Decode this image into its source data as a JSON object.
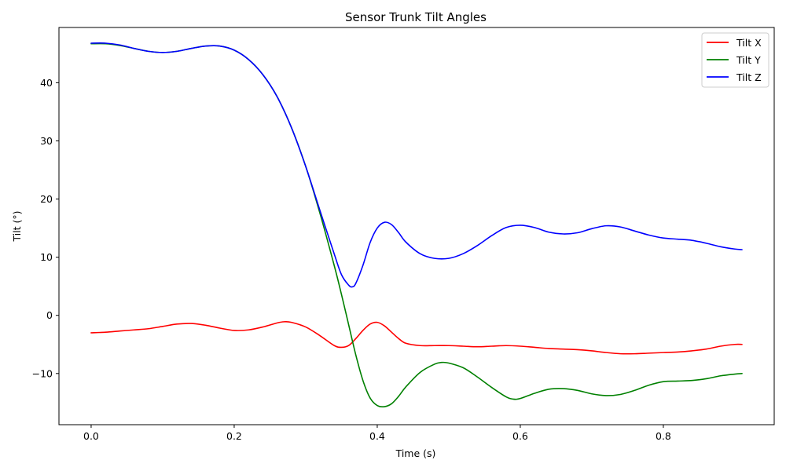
{
  "chart_data": {
    "type": "line",
    "title": "Sensor Trunk Tilt Angles",
    "xlabel": "Time (s)",
    "ylabel": "Tilt (°)",
    "xlim": [
      -0.045,
      0.955
    ],
    "ylim": [
      -18.8,
      49.5
    ],
    "xticks": [
      0.0,
      0.2,
      0.4,
      0.6,
      0.8
    ],
    "xtick_labels": [
      "0.0",
      "0.2",
      "0.4",
      "0.6",
      "0.8"
    ],
    "yticks": [
      -10,
      0,
      10,
      20,
      30,
      40
    ],
    "ytick_labels": [
      "−10",
      "0",
      "10",
      "20",
      "30",
      "40"
    ],
    "grid": false,
    "legend_position": "top-right",
    "series": [
      {
        "name": "Tilt X",
        "color": "#ff0000",
        "x": [
          0.0,
          0.02,
          0.04,
          0.06,
          0.08,
          0.1,
          0.12,
          0.14,
          0.16,
          0.18,
          0.2,
          0.22,
          0.24,
          0.26,
          0.27,
          0.28,
          0.3,
          0.32,
          0.34,
          0.35,
          0.36,
          0.37,
          0.38,
          0.39,
          0.4,
          0.41,
          0.42,
          0.43,
          0.44,
          0.46,
          0.48,
          0.5,
          0.52,
          0.54,
          0.56,
          0.58,
          0.6,
          0.62,
          0.64,
          0.66,
          0.68,
          0.7,
          0.72,
          0.74,
          0.76,
          0.78,
          0.8,
          0.82,
          0.84,
          0.86,
          0.88,
          0.9,
          0.91
        ],
        "y": [
          -3.0,
          -2.9,
          -2.7,
          -2.5,
          -2.3,
          -1.9,
          -1.5,
          -1.4,
          -1.7,
          -2.2,
          -2.6,
          -2.5,
          -2.0,
          -1.3,
          -1.1,
          -1.2,
          -2.0,
          -3.5,
          -5.2,
          -5.5,
          -5.2,
          -4.0,
          -2.6,
          -1.5,
          -1.2,
          -1.8,
          -2.9,
          -4.0,
          -4.8,
          -5.2,
          -5.2,
          -5.2,
          -5.3,
          -5.4,
          -5.3,
          -5.2,
          -5.3,
          -5.5,
          -5.7,
          -5.8,
          -5.9,
          -6.1,
          -6.4,
          -6.6,
          -6.6,
          -6.5,
          -6.4,
          -6.3,
          -6.1,
          -5.8,
          -5.3,
          -5.0,
          -5.0
        ]
      },
      {
        "name": "Tilt Y",
        "color": "#008000",
        "x": [
          0.0,
          0.02,
          0.04,
          0.06,
          0.08,
          0.1,
          0.12,
          0.14,
          0.16,
          0.18,
          0.2,
          0.22,
          0.24,
          0.26,
          0.28,
          0.3,
          0.32,
          0.34,
          0.35,
          0.36,
          0.37,
          0.38,
          0.39,
          0.4,
          0.41,
          0.42,
          0.43,
          0.44,
          0.46,
          0.48,
          0.49,
          0.5,
          0.52,
          0.54,
          0.56,
          0.58,
          0.59,
          0.6,
          0.62,
          0.64,
          0.66,
          0.68,
          0.7,
          0.72,
          0.74,
          0.76,
          0.78,
          0.8,
          0.82,
          0.84,
          0.86,
          0.88,
          0.9,
          0.91
        ],
        "y": [
          46.7,
          46.7,
          46.4,
          45.9,
          45.4,
          45.2,
          45.4,
          45.9,
          46.3,
          46.3,
          45.6,
          44.0,
          41.4,
          37.6,
          32.3,
          25.6,
          17.5,
          8.5,
          3.6,
          -1.6,
          -6.8,
          -11.2,
          -14.2,
          -15.5,
          -15.7,
          -15.2,
          -13.9,
          -12.3,
          -9.8,
          -8.4,
          -8.1,
          -8.2,
          -9.0,
          -10.6,
          -12.4,
          -14.0,
          -14.4,
          -14.3,
          -13.4,
          -12.7,
          -12.6,
          -12.9,
          -13.5,
          -13.8,
          -13.6,
          -12.9,
          -12.0,
          -11.4,
          -11.3,
          -11.2,
          -10.9,
          -10.4,
          -10.1,
          -10.0
        ]
      },
      {
        "name": "Tilt Z",
        "color": "#0000ff",
        "x": [
          0.0,
          0.02,
          0.04,
          0.06,
          0.08,
          0.1,
          0.12,
          0.14,
          0.16,
          0.18,
          0.2,
          0.22,
          0.24,
          0.26,
          0.28,
          0.3,
          0.32,
          0.34,
          0.35,
          0.36,
          0.365,
          0.37,
          0.38,
          0.39,
          0.4,
          0.41,
          0.42,
          0.43,
          0.44,
          0.46,
          0.48,
          0.5,
          0.52,
          0.54,
          0.56,
          0.58,
          0.6,
          0.62,
          0.64,
          0.66,
          0.68,
          0.7,
          0.72,
          0.74,
          0.76,
          0.78,
          0.8,
          0.82,
          0.84,
          0.86,
          0.88,
          0.9,
          0.91
        ],
        "y": [
          46.8,
          46.8,
          46.5,
          45.9,
          45.4,
          45.2,
          45.4,
          45.9,
          46.3,
          46.3,
          45.6,
          44.0,
          41.4,
          37.6,
          32.3,
          25.6,
          18.0,
          10.5,
          7.0,
          5.2,
          4.9,
          5.5,
          8.6,
          12.5,
          15.0,
          16.0,
          15.6,
          14.2,
          12.6,
          10.6,
          9.8,
          9.8,
          10.6,
          12.0,
          13.7,
          15.1,
          15.5,
          15.1,
          14.3,
          14.0,
          14.2,
          14.9,
          15.4,
          15.2,
          14.5,
          13.8,
          13.3,
          13.1,
          12.9,
          12.4,
          11.8,
          11.4,
          11.3
        ]
      }
    ]
  }
}
